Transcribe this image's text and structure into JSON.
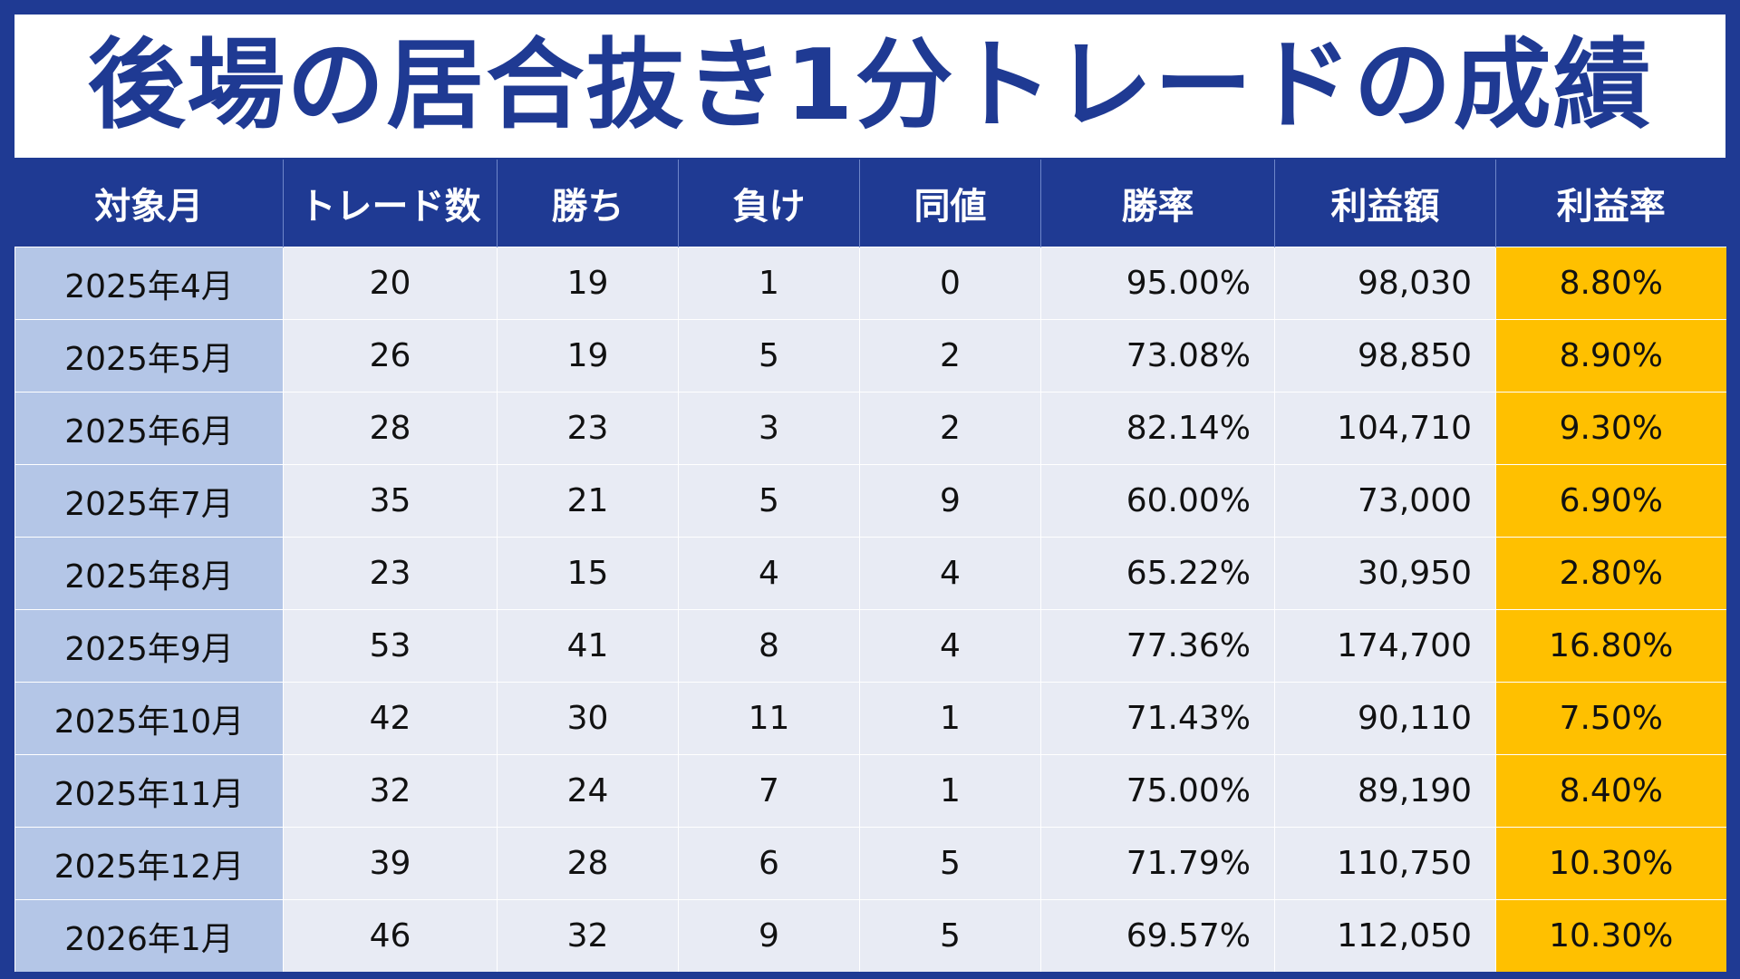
{
  "title": "後場の居合抜き1分トレードの成績",
  "headers": [
    "対象月",
    "トレード数",
    "勝ち",
    "負け",
    "同値",
    "勝率",
    "利益額",
    "利益率"
  ],
  "rows": [
    [
      "2025年4月",
      "20",
      "19",
      "1",
      "0",
      "95.00%",
      "98,030",
      "8.80%"
    ],
    [
      "2025年5月",
      "26",
      "19",
      "5",
      "2",
      "73.08%",
      "98,850",
      "8.90%"
    ],
    [
      "2025年6月",
      "28",
      "23",
      "3",
      "2",
      "82.14%",
      "104,710",
      "9.30%"
    ],
    [
      "2025年7月",
      "35",
      "21",
      "5",
      "9",
      "60.00%",
      "73,000",
      "6.90%"
    ],
    [
      "2025年8月",
      "23",
      "15",
      "4",
      "4",
      "65.22%",
      "30,950",
      "2.80%"
    ],
    [
      "2025年9月",
      "53",
      "41",
      "8",
      "4",
      "77.36%",
      "174,700",
      "16.80%"
    ],
    [
      "2025年10月",
      "42",
      "30",
      "11",
      "1",
      "71.43%",
      "90,110",
      "7.50%"
    ],
    [
      "2025年11月",
      "32",
      "24",
      "7",
      "1",
      "75.00%",
      "89,190",
      "8.40%"
    ],
    [
      "2025年12月",
      "39",
      "28",
      "6",
      "5",
      "71.79%",
      "110,750",
      "10.30%"
    ],
    [
      "2026年1月",
      "46",
      "32",
      "9",
      "5",
      "69.57%",
      "112,050",
      "10.30%"
    ]
  ],
  "colors": {
    "header_bg": "#1f3a93",
    "month_bg": "#b4c6e7",
    "cell_bg": "#e8ebf4",
    "highlight_bg": "#ffc000"
  }
}
